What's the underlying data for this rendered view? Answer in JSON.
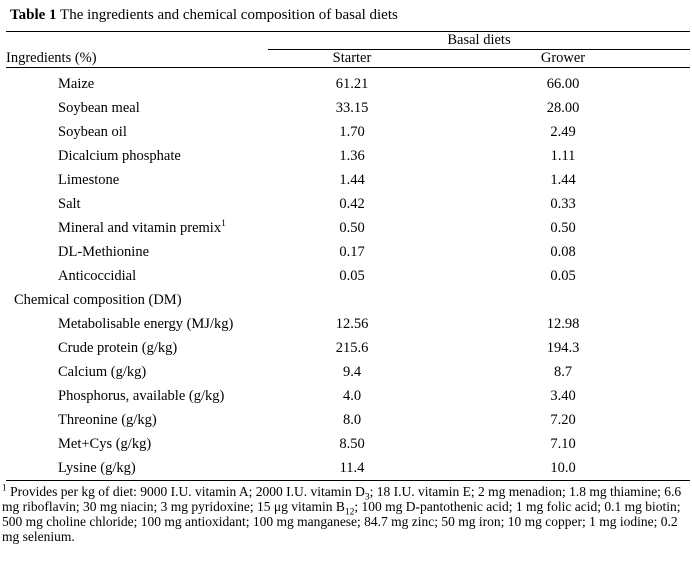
{
  "title": {
    "label": "Table 1",
    "text": " The ingredients and chemical composition of basal diets"
  },
  "table": {
    "group_header": "Basal diets",
    "col_headers": {
      "ingredients": "Ingredients (%)",
      "starter": "Starter",
      "grower": "Grower"
    },
    "rows": [
      {
        "label": "Maize",
        "starter": "61.21",
        "grower": "66.00"
      },
      {
        "label": "Soybean meal",
        "starter": "33.15",
        "grower": "28.00"
      },
      {
        "label": "Soybean oil",
        "starter": "1.70",
        "grower": "2.49"
      },
      {
        "label": "Dicalcium phosphate",
        "starter": "1.36",
        "grower": "1.11"
      },
      {
        "label": "Limestone",
        "starter": "1.44",
        "grower": "1.44"
      },
      {
        "label": "Salt",
        "starter": "0.42",
        "grower": "0.33"
      },
      {
        "label": "Mineral and vitamin premix",
        "sup": "1",
        "starter": "0.50",
        "grower": "0.50"
      },
      {
        "label": "DL-Methionine",
        "starter": "0.17",
        "grower": "0.08"
      },
      {
        "label": "Anticoccidial",
        "starter": "0.05",
        "grower": "0.05"
      },
      {
        "label": "Chemical composition (DM)",
        "section": true,
        "starter": "",
        "grower": ""
      },
      {
        "label": "Metabolisable energy (MJ/kg)",
        "starter": "12.56",
        "grower": "12.98"
      },
      {
        "label": "Crude protein (g/kg)",
        "starter": "215.6",
        "grower": "194.3"
      },
      {
        "label": "Calcium (g/kg)",
        "starter": "9.4",
        "grower": "8.7"
      },
      {
        "label": "Phosphorus, available (g/kg)",
        "starter": "4.0",
        "grower": "3.40"
      },
      {
        "label": "Threonine (g/kg)",
        "starter": "8.0",
        "grower": "7.20"
      },
      {
        "label": "Met+Cys (g/kg)",
        "starter": "8.50",
        "grower": "7.10"
      },
      {
        "label": "Lysine (g/kg)",
        "starter": "11.4",
        "grower": "10.0"
      }
    ]
  },
  "footnote": {
    "segments": [
      {
        "t": "1",
        "style": "sup"
      },
      {
        "t": " Provides per kg of diet: 9000 I.U. vitamin A; 2000 I.U. vitamin D"
      },
      {
        "t": "3",
        "style": "sub"
      },
      {
        "t": "; 18 I.U. vitamin E; 2 mg menadion; 1.8 mg thiamine; 6.6 mg riboflavin; 30 mg niacin; 3 mg pyridoxine; 15 μg vitamin B"
      },
      {
        "t": "12",
        "style": "sub"
      },
      {
        "t": "; 100 mg D-pantothenic acid; 1 mg folic acid; 0.1 mg biotin; 500 mg choline chloride; 100 mg antioxidant; 100 mg manganese; 84.7 mg zinc; 50 mg iron; 10 mg copper; 1 mg iodine; 0.2 mg selenium."
      }
    ]
  }
}
